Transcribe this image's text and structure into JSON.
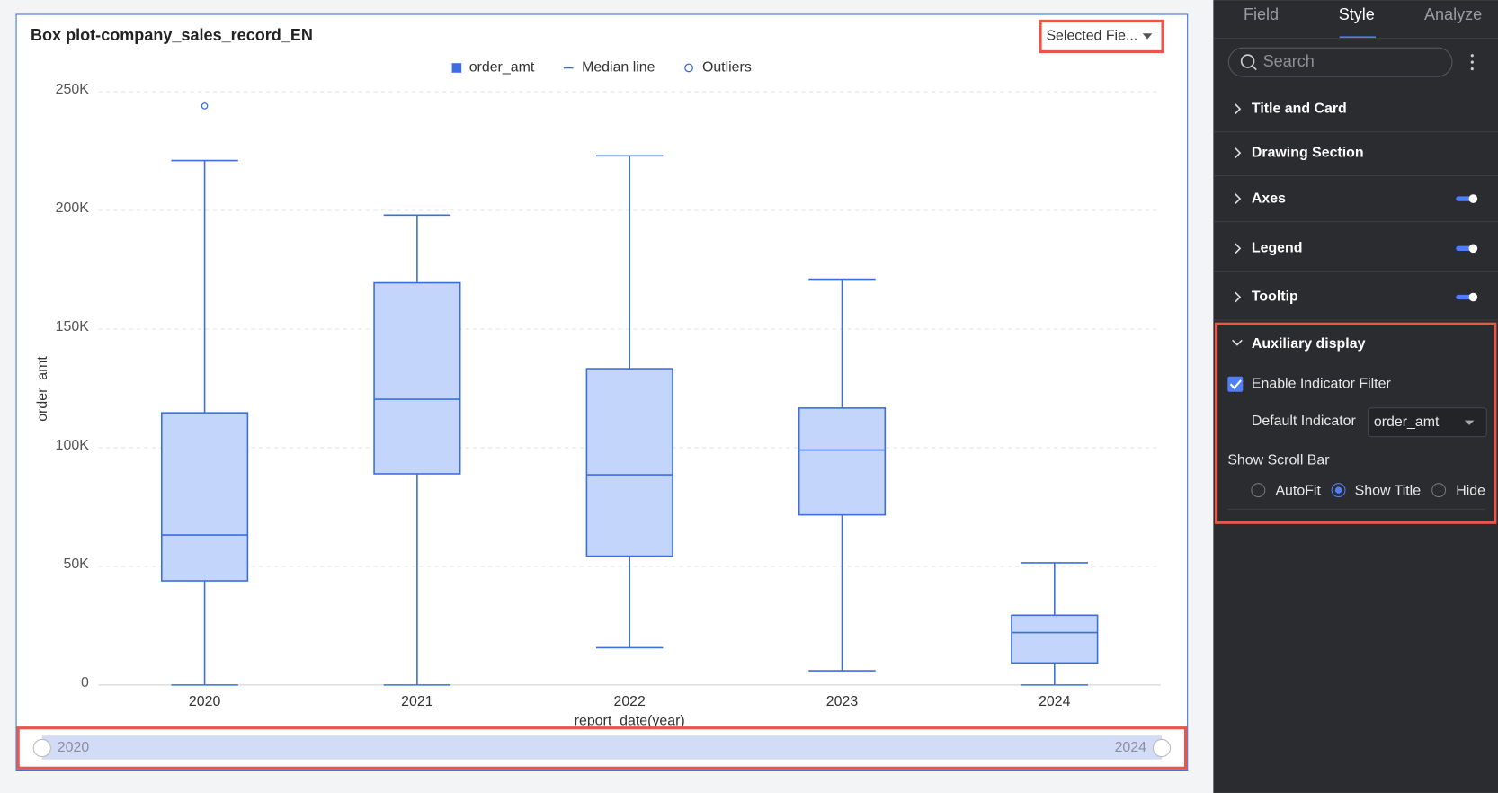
{
  "chart_data": {
    "type": "box",
    "title": "Box plot-company_sales_record_EN",
    "x_label": "report_date(year)",
    "y_label": "order_amt",
    "categories": [
      "2020",
      "2021",
      "2022",
      "2023",
      "2024"
    ],
    "series": [
      {
        "name": "order_amt",
        "color": "#3b6fe0",
        "fill": "#c3d5fb",
        "max": [
          221000,
          198000,
          223000,
          171000,
          51500
        ],
        "q3": [
          114700,
          169500,
          133300,
          116700,
          29400
        ],
        "median": [
          63200,
          120400,
          88600,
          99000,
          22100
        ],
        "q1": [
          43900,
          89000,
          54300,
          71700,
          9300
        ],
        "min": [
          0,
          0,
          15700,
          6000,
          0
        ]
      }
    ],
    "median_line": "Median line",
    "outliers": {
      "name": "Outliers",
      "categories": [
        "2020"
      ],
      "values": [
        244000
      ]
    },
    "ylim": [
      0,
      250000
    ],
    "yticks": [
      0,
      {
        "value": 50000,
        "label": "50K"
      },
      {
        "value": 100000,
        "label": "100K"
      },
      {
        "value": 150000,
        "label": "150K"
      },
      {
        "value": 200000,
        "label": "200K"
      },
      {
        "value": 250000,
        "label": "250K"
      }
    ],
    "grid": true
  },
  "controls": {
    "field_select": "Selected Fie...",
    "scroll_bar": {
      "start": "2020",
      "end": "2024"
    }
  },
  "panel": {
    "tabs": [
      "Field",
      "Style",
      "Analyze"
    ],
    "search_placeholder": "Search",
    "sections": [
      "Title and Card",
      "Drawing Section",
      "Axes",
      "Legend",
      "Tooltip"
    ],
    "auxiliary": {
      "title": "Auxiliary display",
      "enable_filter": "Enable Indicator Filter",
      "default_indicator_label": "Default Indicator",
      "default_indicator": "order_amt",
      "scroll_bar_label": "Show Scroll Bar",
      "scroll_options": [
        "AutoFit",
        "Show Title",
        "Hide"
      ]
    }
  }
}
